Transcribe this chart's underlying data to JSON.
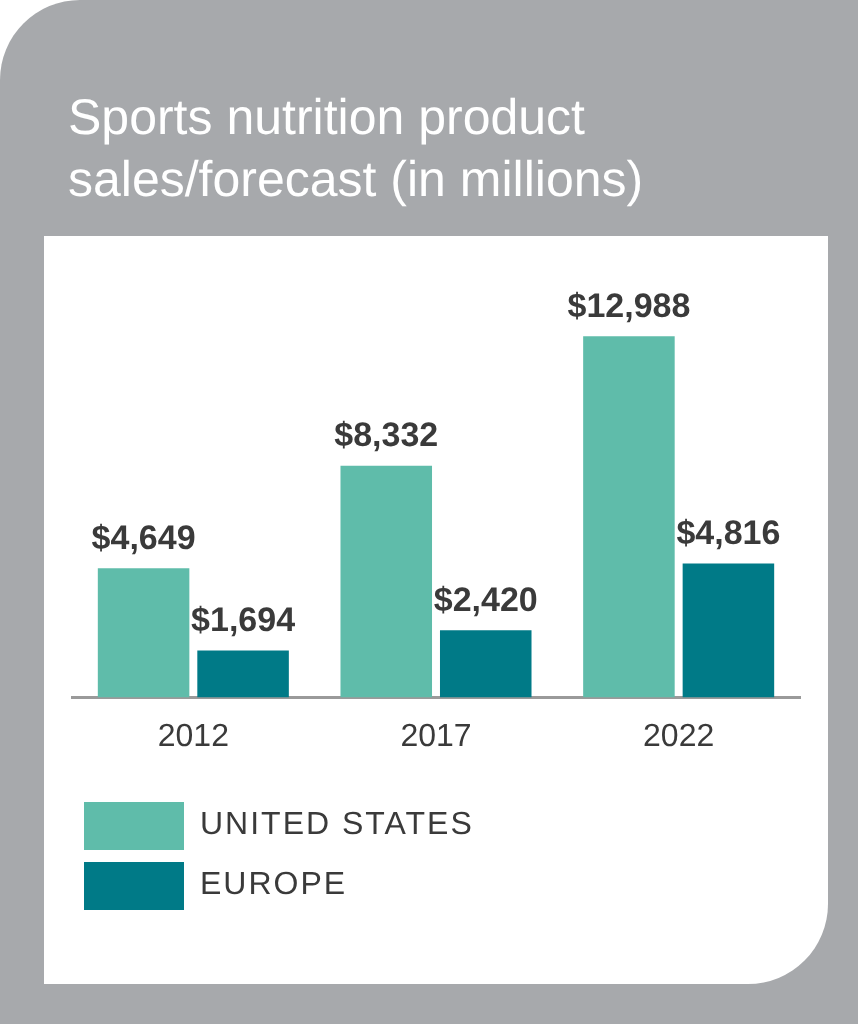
{
  "chart_data": {
    "type": "bar",
    "title": "Sports nutrition product sales/forecast (in millions)",
    "categories": [
      "2012",
      "2017",
      "2022"
    ],
    "series": [
      {
        "name": "UNITED STATES",
        "color": "#5fbcaa",
        "values": [
          4649,
          8332,
          12988
        ],
        "value_labels": [
          "$4,649",
          "$8,332",
          "$12,988"
        ]
      },
      {
        "name": "EUROPE",
        "color": "#007a87",
        "values": [
          1694,
          2420,
          4816
        ],
        "value_labels": [
          "$1,694",
          "$2,420",
          "$4,816"
        ]
      }
    ],
    "tick_labels": "x",
    "grid": false,
    "legend": "bottom"
  }
}
